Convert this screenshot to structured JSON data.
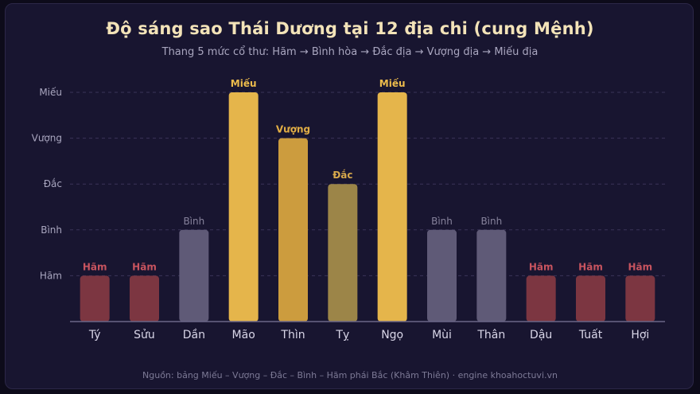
{
  "title": "Độ sáng sao Thái Dương tại 12 địa chi (cung Mệnh)",
  "subtitle": "Thang 5 mức cổ thư: Hãm → Bình hòa → Đắc địa → Vượng địa → Miếu địa",
  "source": "Nguồn: bảng Miếu – Vượng – Đắc – Bình – Hãm phái Bắc (Khâm Thiên) · engine khoahoctuvi.vn",
  "colors": {
    "Hãm": "#7c3641",
    "Bình": "#5f5a77",
    "Đắc": "#9c8548",
    "Vượng": "#cc9c3e",
    "Miếu": "#e5b54b",
    "label_Hãm": "#c8545f",
    "label_Bình": "#87839c",
    "label_Đắc": "#d7a84b",
    "label_Vượng": "#e2ae45",
    "label_Miếu": "#edbc4c"
  },
  "chart_data": {
    "type": "bar",
    "levels": [
      "Hãm",
      "Bình",
      "Đắc",
      "Vượng",
      "Miếu"
    ],
    "categories": [
      "Tý",
      "Sửu",
      "Dần",
      "Mão",
      "Thìn",
      "Tỵ",
      "Ngọ",
      "Mùi",
      "Thân",
      "Dậu",
      "Tuất",
      "Hợi"
    ],
    "values": [
      1,
      1,
      2,
      5,
      4,
      3,
      5,
      2,
      2,
      1,
      1,
      1
    ],
    "data_labels": [
      "Hãm",
      "Hãm",
      "Bình",
      "Miếu",
      "Vượng",
      "Đắc",
      "Miếu",
      "Bình",
      "Bình",
      "Hãm",
      "Hãm",
      "Hãm"
    ],
    "ylim": [
      0,
      5
    ],
    "grid": true
  }
}
